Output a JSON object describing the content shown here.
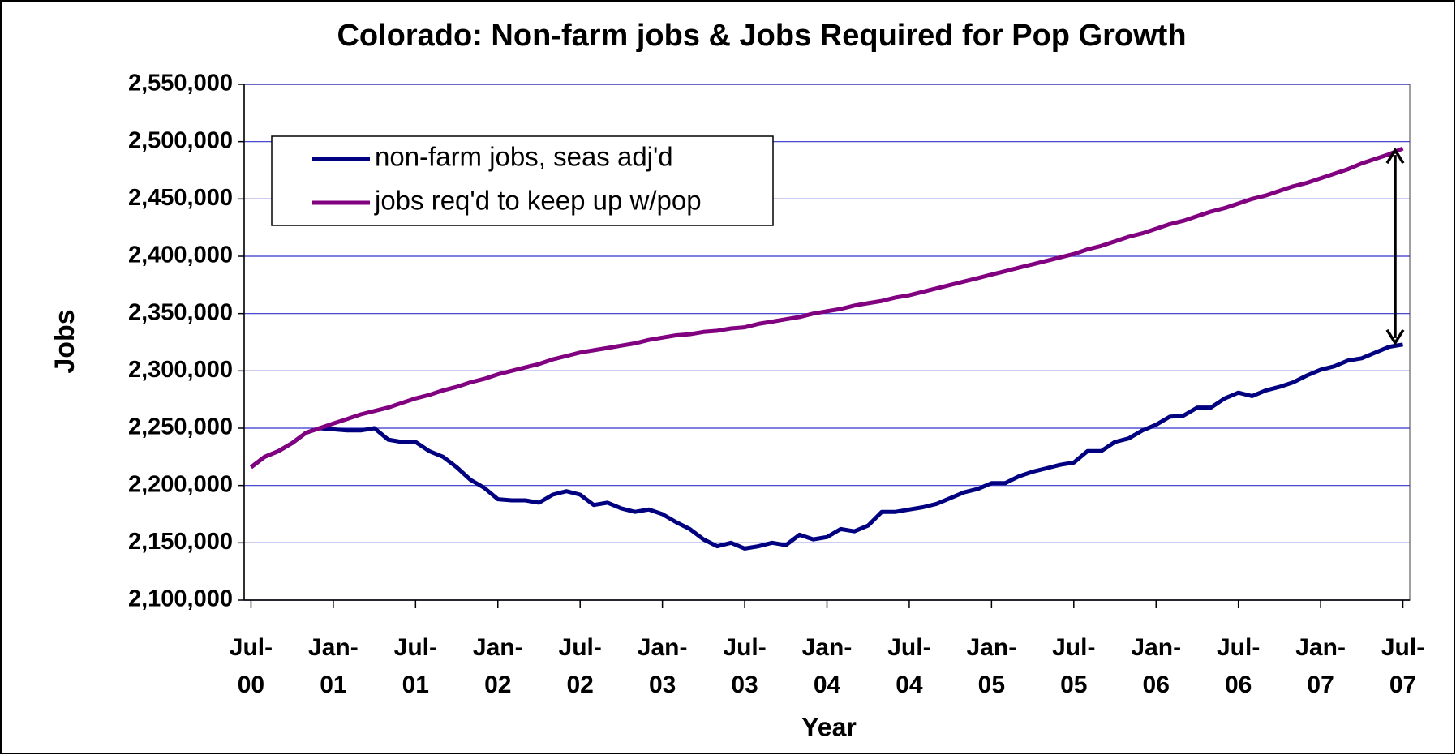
{
  "chart_data": {
    "type": "line",
    "title": "Colorado: Non-farm jobs & Jobs Required for Pop Growth",
    "x_label": "Year",
    "y_label": "Jobs",
    "categories": [
      "Jul-00",
      null,
      null,
      null,
      null,
      null,
      "Jan-01",
      null,
      null,
      null,
      null,
      null,
      "Jul-01",
      null,
      null,
      null,
      null,
      null,
      "Jan-02",
      null,
      null,
      null,
      null,
      null,
      "Jul-02",
      null,
      null,
      null,
      null,
      null,
      "Jan-03",
      null,
      null,
      null,
      null,
      null,
      "Jul-03",
      null,
      null,
      null,
      null,
      null,
      "Jan-04",
      null,
      null,
      null,
      null,
      null,
      "Jul-04",
      null,
      null,
      null,
      null,
      null,
      "Jan-05",
      null,
      null,
      null,
      null,
      null,
      "Jul-05",
      null,
      null,
      null,
      null,
      null,
      "Jan-06",
      null,
      null,
      null,
      null,
      null,
      "Jul-06",
      null,
      null,
      null,
      null,
      null,
      "Jan-07",
      null,
      null,
      null,
      null,
      null,
      "Jul-07"
    ],
    "series": [
      {
        "name": "non-farm jobs, seas adj'd",
        "color": "#000080",
        "values": [
          2216000,
          2225000,
          2230000,
          2237000,
          2246000,
          2250000,
          2249000,
          2248000,
          2248000,
          2250000,
          2240000,
          2238000,
          2238000,
          2230000,
          2225000,
          2216000,
          2205000,
          2198000,
          2188000,
          2187000,
          2187000,
          2185000,
          2192000,
          2195000,
          2192000,
          2183000,
          2185000,
          2180000,
          2177000,
          2179000,
          2175000,
          2168000,
          2162000,
          2153000,
          2147000,
          2150000,
          2145000,
          2147000,
          2150000,
          2148000,
          2157000,
          2153000,
          2155000,
          2162000,
          2160000,
          2165000,
          2177000,
          2177000,
          2179000,
          2181000,
          2184000,
          2189000,
          2194000,
          2197000,
          2202000,
          2202000,
          2208000,
          2212000,
          2215000,
          2218000,
          2220000,
          2230000,
          2230000,
          2238000,
          2241000,
          2248000,
          2253000,
          2260000,
          2261000,
          2268000,
          2268000,
          2276000,
          2281000,
          2278000,
          2283000,
          2286000,
          2290000,
          2296000,
          2301000,
          2304000,
          2309000,
          2311000,
          2316000,
          2321000,
          2323000
        ]
      },
      {
        "name": "jobs req'd to keep up w/pop",
        "color": "#800080",
        "values": [
          2216000,
          2225000,
          2230000,
          2237000,
          2246000,
          2250000,
          2254000,
          2258000,
          2262000,
          2265000,
          2268000,
          2272000,
          2276000,
          2279000,
          2283000,
          2286000,
          2290000,
          2293000,
          2297000,
          2300000,
          2303000,
          2306000,
          2310000,
          2313000,
          2316000,
          2318000,
          2320000,
          2322000,
          2324000,
          2327000,
          2329000,
          2331000,
          2332000,
          2334000,
          2335000,
          2337000,
          2338000,
          2341000,
          2343000,
          2345000,
          2347000,
          2350000,
          2352000,
          2354000,
          2357000,
          2359000,
          2361000,
          2364000,
          2366000,
          2369000,
          2372000,
          2375000,
          2378000,
          2381000,
          2384000,
          2387000,
          2390000,
          2393000,
          2396000,
          2399000,
          2402000,
          2406000,
          2409000,
          2413000,
          2417000,
          2420000,
          2424000,
          2428000,
          2431000,
          2435000,
          2439000,
          2442000,
          2446000,
          2450000,
          2453000,
          2457000,
          2461000,
          2464000,
          2468000,
          2472000,
          2476000,
          2481000,
          2485000,
          2489000,
          2494000
        ]
      }
    ],
    "ylim": [
      2100000,
      2550000
    ],
    "yticks": [
      {
        "value": 2100000,
        "label": "2,100,000"
      },
      {
        "value": 2150000,
        "label": "2,150,000"
      },
      {
        "value": 2200000,
        "label": "2,200,000"
      },
      {
        "value": 2250000,
        "label": "2,250,000"
      },
      {
        "value": 2300000,
        "label": "2,300,000"
      },
      {
        "value": 2350000,
        "label": "2,350,000"
      },
      {
        "value": 2400000,
        "label": "2,400,000"
      },
      {
        "value": 2450000,
        "label": "2,450,000"
      },
      {
        "value": 2500000,
        "label": "2,500,000"
      },
      {
        "value": 2550000,
        "label": "2,550,000"
      }
    ],
    "grid": true,
    "legend": "upper left"
  }
}
